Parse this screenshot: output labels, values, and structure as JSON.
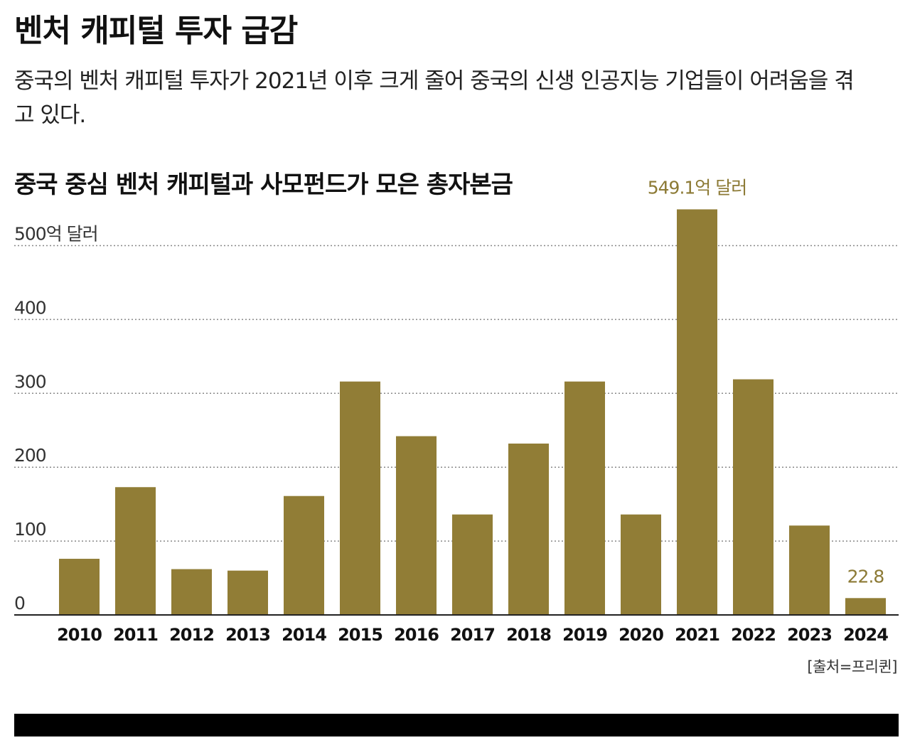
{
  "headline": "벤처 캐피털 투자 급감",
  "subhead": "중국의 벤처 캐피털 투자가 2021년 이후 크게 줄어 중국의 신생 인공지능 기업들이 어려움을 겪고 있다.",
  "source": "[출처=프리퀸]",
  "colors": {
    "bar": "#917d36",
    "annotation": "#8c7a35",
    "grid": "#888888",
    "axis": "#222222"
  },
  "chart_data": {
    "type": "bar",
    "title": "중국 중심 벤처 캐피털과 사모펀드가 모은 총자본금",
    "ylabel": "",
    "y_unit_label": "500억 달러",
    "ylim": [
      0,
      550
    ],
    "yticks": [
      {
        "value": 0,
        "label": "0"
      },
      {
        "value": 100,
        "label": "100"
      },
      {
        "value": 200,
        "label": "200"
      },
      {
        "value": 300,
        "label": "300"
      },
      {
        "value": 400,
        "label": "400"
      },
      {
        "value": 500,
        "label": "500"
      }
    ],
    "grid": true,
    "categories": [
      "2010",
      "2011",
      "2012",
      "2013",
      "2014",
      "2015",
      "2016",
      "2017",
      "2018",
      "2019",
      "2020",
      "2021",
      "2022",
      "2023",
      "2024"
    ],
    "values": [
      76,
      173,
      62,
      60,
      161,
      316,
      242,
      136,
      232,
      316,
      136,
      549.1,
      319,
      121,
      22.8
    ],
    "annotations": [
      {
        "category": "2021",
        "text": "549.1억 달러"
      },
      {
        "category": "2024",
        "text": "22.8"
      }
    ]
  }
}
